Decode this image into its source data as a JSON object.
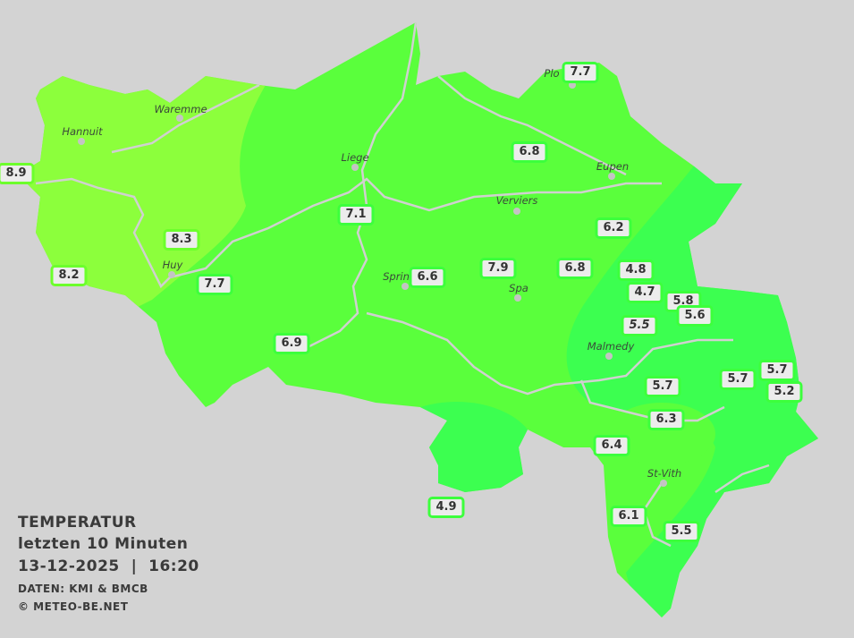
{
  "legend": {
    "title": "TEMPERATUR",
    "period": "letzten 10 Minuten",
    "datetime": "13-12-2025  |  16:20",
    "source": "DATEN: KMI & BMCB",
    "copyright": "© METEO-BE.NET"
  },
  "colors": {
    "background": "#d3d3d3",
    "warm_zone": "#8cff3c",
    "mid_zone": "#5aff3c",
    "cool_zone": "#3cff50",
    "river": "#d0d0d0",
    "label_bg": "#ececec"
  },
  "cities": [
    "Hannuit",
    "Waremme",
    "Liege",
    "Eupen",
    "Verviers",
    "Huy",
    "Sprin",
    "Spa",
    "Malmedy",
    "St-Vith",
    "Plo"
  ],
  "stations": [
    {
      "value": "8.9"
    },
    {
      "value": "8.3"
    },
    {
      "value": "8.2"
    },
    {
      "value": "7.7"
    },
    {
      "value": "6.9"
    },
    {
      "value": "7.1"
    },
    {
      "value": "6.6"
    },
    {
      "value": "7.9"
    },
    {
      "value": "6.8"
    },
    {
      "value": "6.8"
    },
    {
      "value": "7.7"
    },
    {
      "value": "6.2"
    },
    {
      "value": "4.8"
    },
    {
      "value": "4.7"
    },
    {
      "value": "5.8"
    },
    {
      "value": "5.6"
    },
    {
      "value": "5.5"
    },
    {
      "value": "5.7"
    },
    {
      "value": "5.7"
    },
    {
      "value": "5.7"
    },
    {
      "value": "5.2"
    },
    {
      "value": "6.3"
    },
    {
      "value": "6.4"
    },
    {
      "value": "6.1"
    },
    {
      "value": "5.5"
    },
    {
      "value": "4.9"
    }
  ]
}
